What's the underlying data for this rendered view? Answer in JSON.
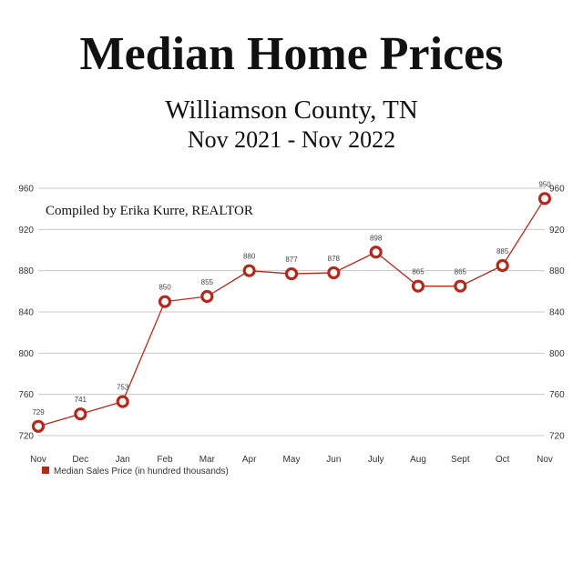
{
  "header": {
    "title": "Median Home Prices",
    "subtitle": "Williamson County, TN",
    "period": "Nov 2021 - Nov 2022"
  },
  "annotation": "Compiled by Erika Kurre, REALTOR",
  "chart_data": {
    "type": "line",
    "categories": [
      "Nov",
      "Dec",
      "Jan",
      "Feb",
      "Mar",
      "Apr",
      "May",
      "Jun",
      "July",
      "Aug",
      "Sept",
      "Oct",
      "Nov"
    ],
    "series": [
      {
        "name": "Median Sales Price (in hundred thousands)",
        "values": [
          729,
          741,
          753,
          850,
          855,
          880,
          877,
          878,
          898,
          865,
          865,
          885,
          950
        ],
        "color": "#b5281c"
      }
    ],
    "ylim": [
      720,
      960
    ],
    "yticks": [
      720,
      760,
      800,
      840,
      880,
      920,
      960
    ],
    "grid": true,
    "legend": "bottom-left",
    "secondary_y_axis": true
  }
}
